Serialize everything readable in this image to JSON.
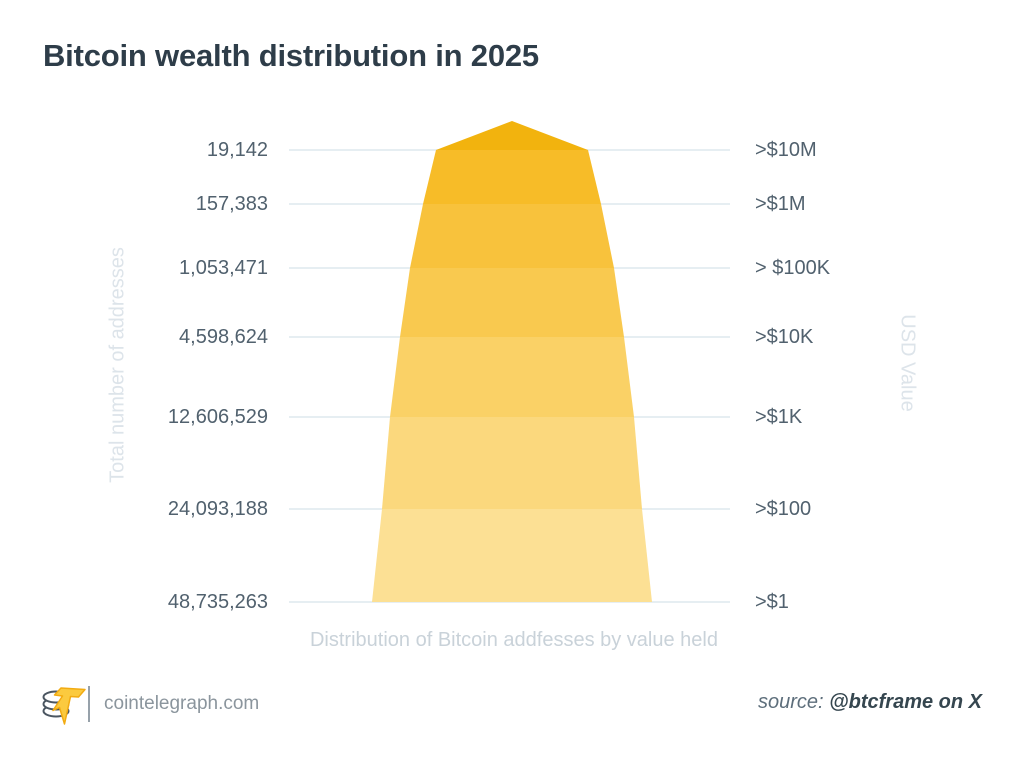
{
  "title": "Bitcoin wealth distribution in 2025",
  "chart_data": {
    "type": "funnel",
    "title": "Bitcoin wealth distribution in 2025",
    "left_axis_label": "Total number of addresses",
    "right_axis_label": "USD Value",
    "caption": "Distribution of Bitcoin addfesses by value held",
    "categories": [
      ">$10M",
      ">$1M",
      "> $100K",
      ">$10K",
      ">$1K",
      ">$100",
      ">$1"
    ],
    "values": [
      19142,
      157383,
      1053471,
      4598624,
      12606529,
      24093188,
      48735263
    ],
    "rows": [
      {
        "addresses": "19,142",
        "usd": ">$10M"
      },
      {
        "addresses": "157,383",
        "usd": ">$1M"
      },
      {
        "addresses": "1,053,471",
        "usd": "> $100K"
      },
      {
        "addresses": "4,598,624",
        "usd": ">$10K"
      },
      {
        "addresses": "12,606,529",
        "usd": ">$1K"
      },
      {
        "addresses": "24,093,188",
        "usd": ">$100"
      },
      {
        "addresses": "48,735,263",
        "usd": ">$1"
      }
    ],
    "legend": "none",
    "grid": "horizontal",
    "colors": {
      "cap": "#f2b30e",
      "bands": [
        "#f7bc28",
        "#f8c23c",
        "#f9c94f",
        "#fad166",
        "#fbd87d",
        "#fce094"
      ],
      "gridline": "#dde8ed",
      "tick_text": "#51616e",
      "axis_title_text": "#dde4ea",
      "title_text": "#2e3d49"
    }
  },
  "footer": {
    "site": "cointelegraph.com",
    "source_prefix": "source:",
    "source_handle": "@btcframe on X",
    "brand_color": "#f9c535"
  }
}
